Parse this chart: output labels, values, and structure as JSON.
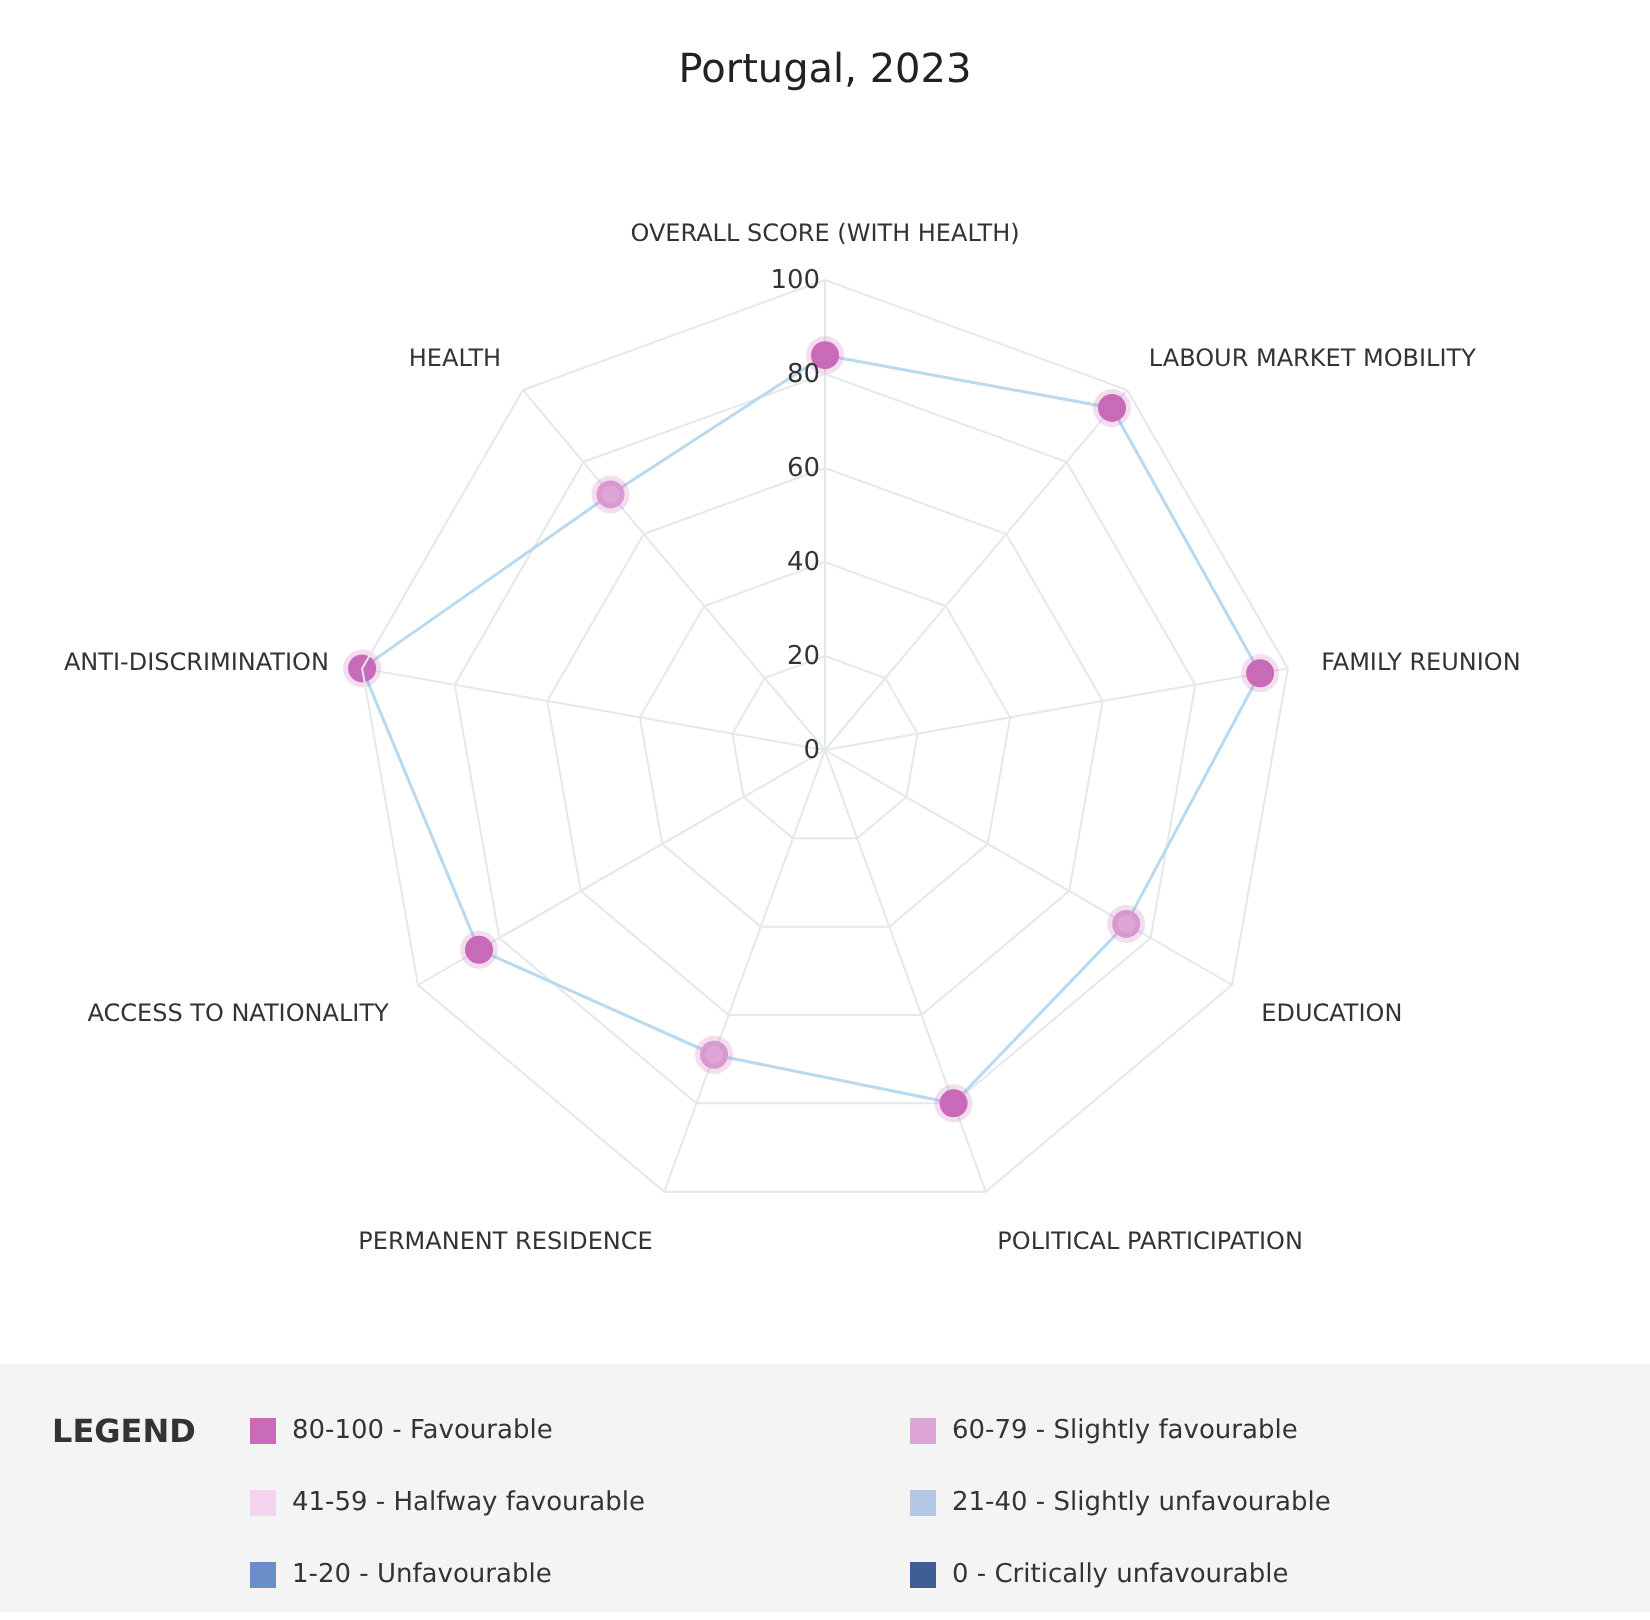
{
  "chart_data": {
    "type": "radar",
    "title": "Portugal, 2023",
    "categories": [
      "OVERALL SCORE (WITH HEALTH)",
      "LABOUR MARKET MOBILITY",
      "FAMILY REUNION",
      "EDUCATION",
      "POLITICAL PARTICIPATION",
      "PERMANENT RESIDENCE",
      "ACCESS TO NATIONALITY",
      "ANTI-DISCRIMINATION",
      "HEALTH"
    ],
    "series": [
      {
        "color": "#b9d9f0",
        "colors": [
          "#c86bb8",
          "#c86bb8",
          "#c86bb8",
          "#dea6d6",
          "#c86bb8",
          "#dea6d6",
          "#c86bb8",
          "#c86bb8",
          "#dea6d6"
        ],
        "values": [
          84,
          95,
          94,
          74,
          80,
          69,
          85,
          100,
          71
        ]
      }
    ],
    "ylim": [
      0,
      100
    ],
    "yticks": [
      0,
      20,
      40,
      60,
      80,
      100
    ],
    "grid": true,
    "marker": "circle",
    "annotations": [
      "LEGEND",
      "80-100 - Favourable",
      "60-79 - Slightly favourable",
      "41-59 - Halfway favourable",
      "21-40 - Slightly unfavourable",
      "1-20 - Unfavourable",
      "0 - Critically unfavourable"
    ]
  }
}
